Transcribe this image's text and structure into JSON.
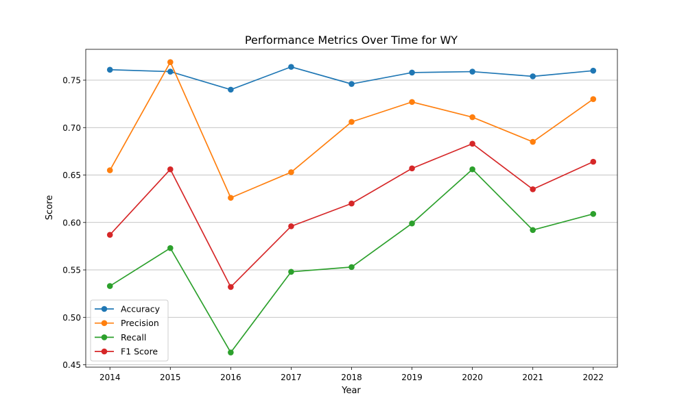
{
  "chart_data": {
    "type": "line",
    "title": "Performance Metrics Over Time for WY",
    "xlabel": "Year",
    "ylabel": "Score",
    "x": [
      2014,
      2015,
      2016,
      2017,
      2018,
      2019,
      2020,
      2021,
      2022
    ],
    "x_tick_labels": [
      "2014",
      "2015",
      "2016",
      "2017",
      "2018",
      "2019",
      "2020",
      "2021",
      "2022"
    ],
    "xlim": [
      2013.6,
      2022.4
    ],
    "ylim": [
      0.4475,
      0.7825
    ],
    "y_ticks": [
      0.45,
      0.5,
      0.55,
      0.6,
      0.65,
      0.7,
      0.75
    ],
    "y_tick_labels": [
      "0.45",
      "0.50",
      "0.55",
      "0.60",
      "0.65",
      "0.70",
      "0.75"
    ],
    "grid": "horizontal",
    "legend_position": "lower-left",
    "series": [
      {
        "name": "Accuracy",
        "color": "#1f77b4",
        "marker": "circle",
        "values": [
          0.761,
          0.759,
          0.74,
          0.764,
          0.746,
          0.758,
          0.759,
          0.754,
          0.76
        ]
      },
      {
        "name": "Precision",
        "color": "#ff7f0e",
        "marker": "circle",
        "values": [
          0.655,
          0.769,
          0.626,
          0.653,
          0.706,
          0.727,
          0.711,
          0.685,
          0.73
        ]
      },
      {
        "name": "Recall",
        "color": "#2ca02c",
        "marker": "circle",
        "values": [
          0.533,
          0.573,
          0.463,
          0.548,
          0.553,
          0.599,
          0.656,
          0.592,
          0.609
        ]
      },
      {
        "name": "F1 Score",
        "color": "#d62728",
        "marker": "circle",
        "values": [
          0.587,
          0.656,
          0.532,
          0.596,
          0.62,
          0.657,
          0.683,
          0.635,
          0.664
        ]
      }
    ]
  }
}
